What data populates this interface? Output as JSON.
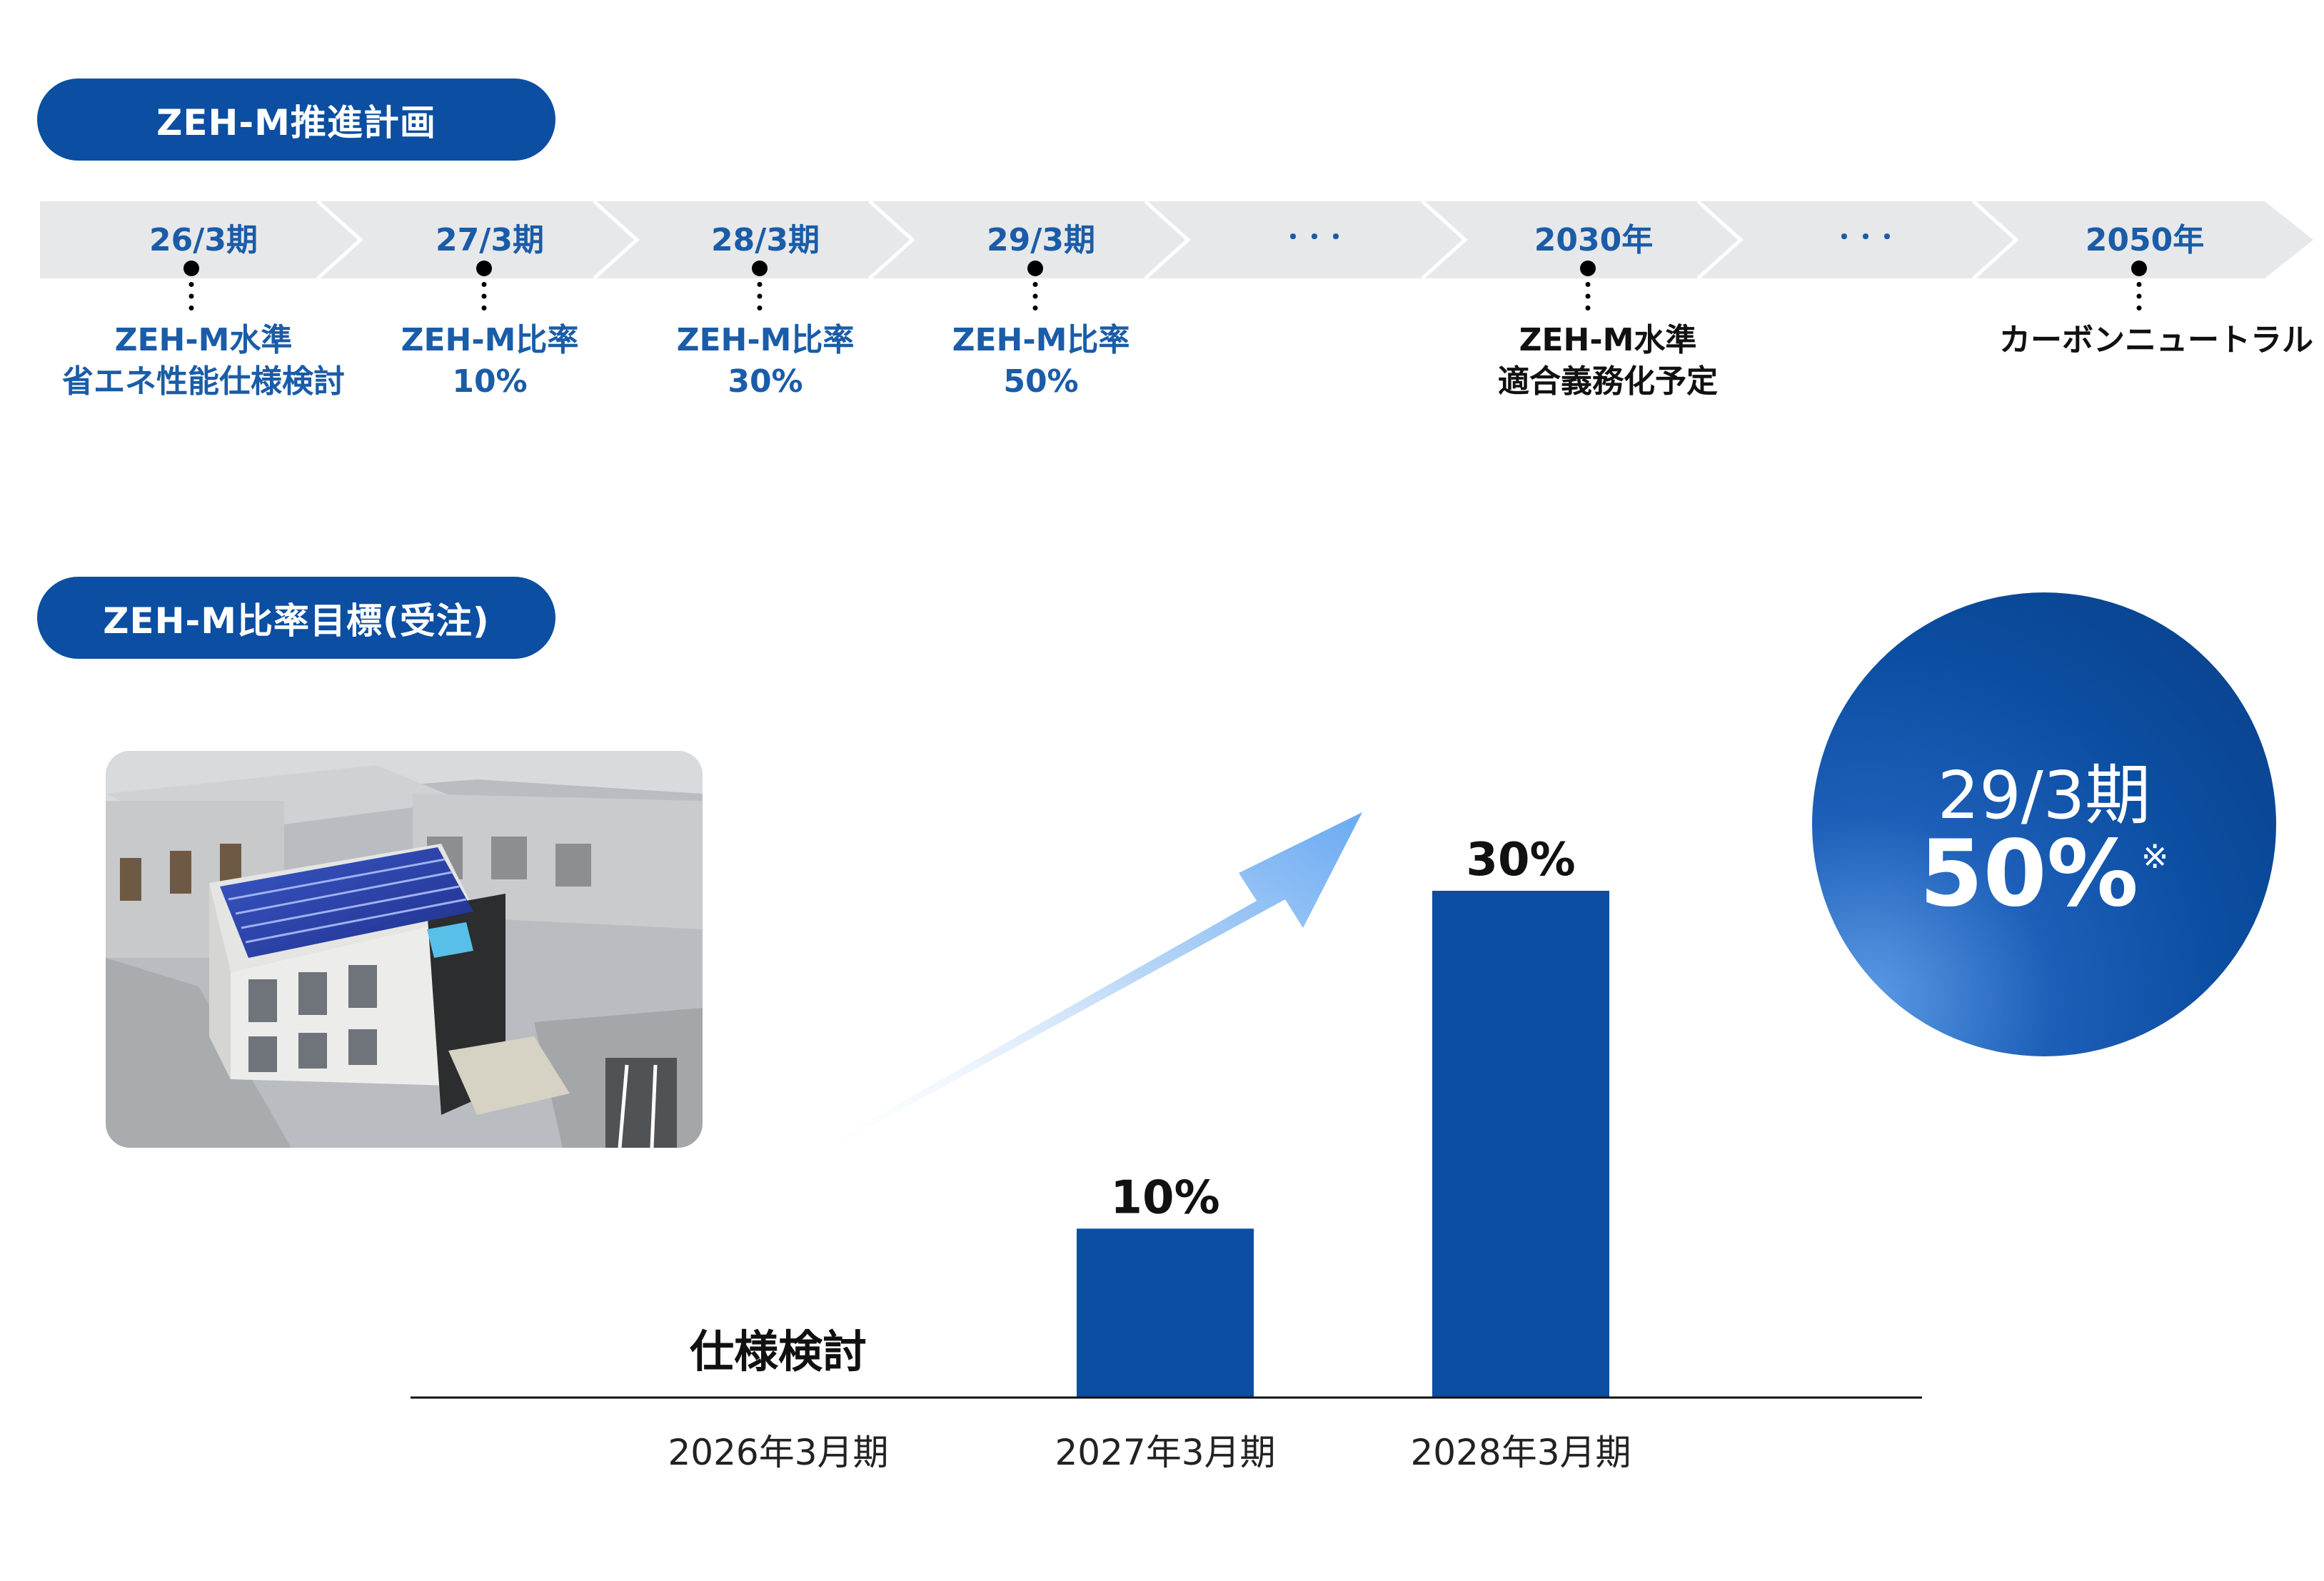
{
  "sections": {
    "plan_title": "ZEH-M推進計画",
    "target_title": "ZEH-M比率目標(受注)"
  },
  "timeline": [
    {
      "label": "26/3期",
      "desc": [
        "ZEH-M水準",
        "省エネ性能仕様検討"
      ],
      "desc_color": "blue"
    },
    {
      "label": "27/3期",
      "desc": [
        "ZEH-M比率",
        "10%"
      ],
      "desc_color": "blue"
    },
    {
      "label": "28/3期",
      "desc": [
        "ZEH-M比率",
        "30%"
      ],
      "desc_color": "blue"
    },
    {
      "label": "29/3期",
      "desc": [
        "ZEH-M比率",
        "50%"
      ],
      "desc_color": "blue"
    },
    {
      "label": "･･･",
      "desc": [],
      "desc_color": "none"
    },
    {
      "label": "2030年",
      "desc": [
        "ZEH-M水準",
        "適合義務化予定"
      ],
      "desc_color": "black"
    },
    {
      "label": "･･･",
      "desc": [],
      "desc_color": "none"
    },
    {
      "label": "2050年",
      "desc": [
        "カーボンニュートラル"
      ],
      "desc_color": "black"
    }
  ],
  "chart_data": {
    "type": "bar",
    "categories": [
      "2026年3月期",
      "2027年3月期",
      "2028年3月期"
    ],
    "values": [
      null,
      10,
      30
    ],
    "value_labels": [
      "",
      "10%",
      "30%"
    ],
    "category_notes": [
      "仕様検討",
      "",
      ""
    ],
    "ylim": [
      0,
      30
    ],
    "unit": "%",
    "bar_color": "#0b4ea2"
  },
  "target": {
    "period": "29/3期",
    "value": "50%",
    "mark": "※"
  },
  "colors": {
    "brand_blue": "#0b4ea2",
    "timeline_band": "#e7e8ea",
    "text_blue": "#1a5ca8"
  }
}
